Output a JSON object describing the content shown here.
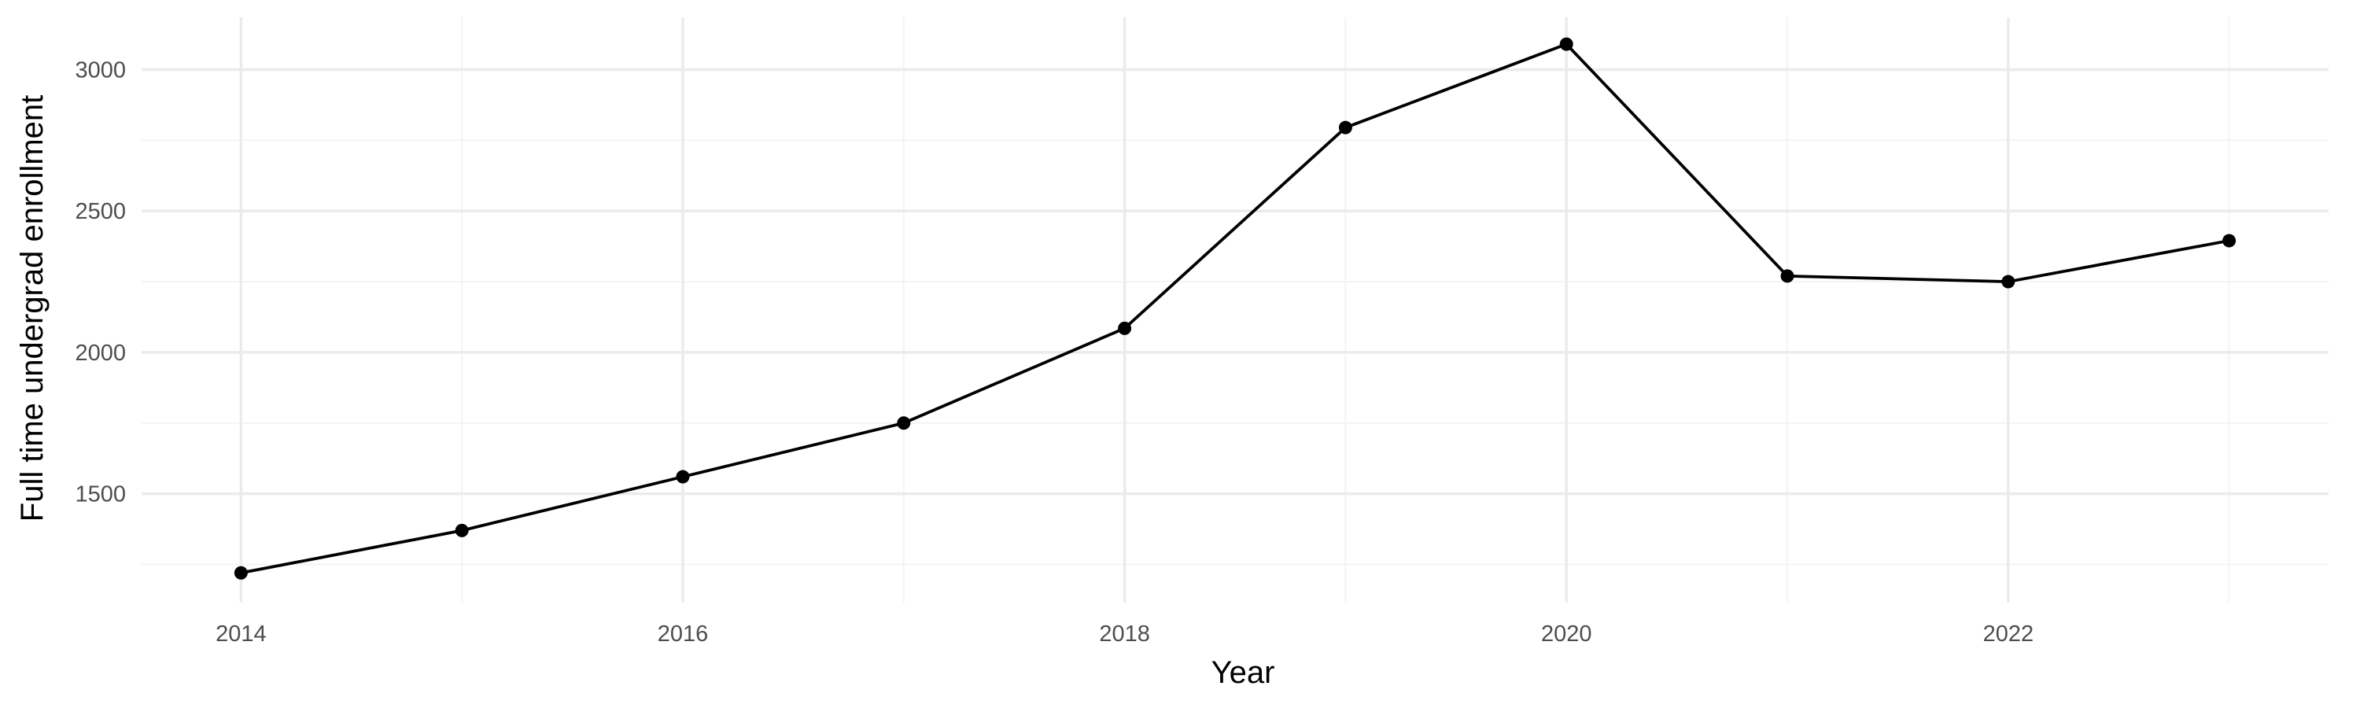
{
  "chart_data": {
    "type": "line",
    "title": "",
    "xlabel": "Year",
    "ylabel": "Full time undergrad enrollment",
    "x": [
      2014,
      2015,
      2016,
      2017,
      2018,
      2019,
      2020,
      2021,
      2022,
      2023
    ],
    "series": [
      {
        "values": [
          1220,
          1370,
          1560,
          1750,
          2085,
          2795,
          3090,
          2270,
          2250,
          2395
        ]
      }
    ],
    "xlim": [
      2013.55,
      2023.45
    ],
    "ylim": [
      1115,
      3185
    ],
    "x_ticks": [
      2014,
      2016,
      2018,
      2020,
      2022
    ],
    "x_minor_ticks": [
      2015,
      2017,
      2019,
      2021,
      2023
    ],
    "y_ticks": [
      1500,
      2000,
      2500,
      3000
    ],
    "y_minor_ticks": [
      1250,
      1750,
      2250,
      2750
    ],
    "grid": true,
    "legend": "none",
    "colors": {
      "line": "#000000",
      "point": "#000000",
      "grid_major": "#ebebeb",
      "grid_minor": "#f4f4f4",
      "tick_text": "#4d4d4d",
      "title_text": "#000000"
    }
  }
}
